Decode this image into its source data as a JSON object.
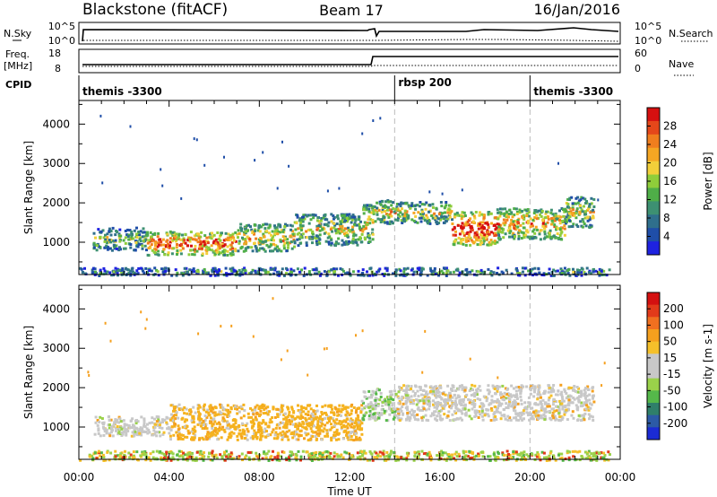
{
  "header": {
    "station": "Blackstone (fitACF)",
    "beam": "Beam 17",
    "date": "16/Jan/2016"
  },
  "summary": {
    "nsky_label": "N.Sky",
    "nsky_ticks": [
      "10^5",
      "10^0"
    ],
    "nsearch_label": "N.Search",
    "nsearch_ticks": [
      "10^5",
      "10^0"
    ],
    "freq_label_1": "Freq.",
    "freq_label_2": "[MHz]",
    "freq_ticks": [
      "18",
      "8"
    ],
    "nave_label": "Nave",
    "nave_ticks": [
      "60",
      "0"
    ],
    "cpid_label": "CPID",
    "cpid_segments": [
      {
        "label": "themis -3300",
        "start_h": 0,
        "end_h": 14
      },
      {
        "label": "rbsp 200",
        "start_h": 14,
        "end_h": 20
      },
      {
        "label": "themis -3300",
        "start_h": 20,
        "end_h": 24
      }
    ]
  },
  "chart_data": [
    {
      "type": "heatmap",
      "panel": "power",
      "ylabel": "Slant Range [km]",
      "colorbar_label": "Power [dB]",
      "colorbar_ticks": [
        "28",
        "24",
        "20",
        "16",
        "12",
        "8",
        "4"
      ],
      "colorbar_colors": [
        "#1e22e0",
        "#1f4ea8",
        "#2f6f8c",
        "#3d9072",
        "#4fae48",
        "#8fcd3a",
        "#f2cf3a",
        "#f5a623",
        "#f07e1e",
        "#e5471a",
        "#d61010"
      ],
      "ylim": [
        180,
        4600
      ],
      "yticks": [
        1000,
        2000,
        3000,
        4000
      ],
      "x_range_hours": [
        0,
        24
      ],
      "scatter_bands": [
        {
          "t0": 0.6,
          "t1": 3.0,
          "r0": 820,
          "r1": 1400,
          "level": 0.35
        },
        {
          "t0": 3.0,
          "t1": 7.0,
          "r0": 700,
          "r1": 1300,
          "level": 0.75
        },
        {
          "t0": 7.0,
          "t1": 9.5,
          "r0": 800,
          "r1": 1500,
          "level": 0.55
        },
        {
          "t0": 9.5,
          "t1": 12.5,
          "r0": 950,
          "r1": 1750,
          "level": 0.45
        },
        {
          "t0": 12.5,
          "t1": 13.0,
          "r0": 1000,
          "r1": 2000,
          "level": 0.55
        },
        {
          "t0": 13.0,
          "t1": 14.0,
          "r0": 1500,
          "r1": 2100,
          "level": 0.5
        },
        {
          "t0": 14.0,
          "t1": 16.5,
          "r0": 1500,
          "r1": 2050,
          "level": 0.45
        },
        {
          "t0": 16.5,
          "t1": 18.5,
          "r0": 950,
          "r1": 1800,
          "level": 0.85
        },
        {
          "t0": 18.5,
          "t1": 21.5,
          "r0": 1100,
          "r1": 1900,
          "level": 0.6
        },
        {
          "t0": 21.5,
          "t1": 22.8,
          "r0": 1400,
          "r1": 2200,
          "level": 0.45
        },
        {
          "t0": 0.0,
          "t1": 23.5,
          "r0": 180,
          "r1": 380,
          "level": 0.25
        }
      ]
    },
    {
      "type": "heatmap",
      "panel": "velocity",
      "ylabel": "Slant Range [km]",
      "colorbar_label": "Velocity [m s-1]",
      "colorbar_ticks": [
        "200",
        "100",
        "50",
        "15",
        "-15",
        "-50",
        "-100",
        "-200"
      ],
      "colorbar_colors": [
        "#1b2bd4",
        "#2c5aa6",
        "#2f7f6a",
        "#55b84a",
        "#9ad24a",
        "#c8c8c8",
        "#c8c8c8",
        "#f5c02a",
        "#f5a01e",
        "#f07020",
        "#e23a1a",
        "#d41010"
      ],
      "ylim": [
        180,
        4600
      ],
      "yticks": [
        1000,
        2000,
        3000,
        4000
      ],
      "x_range_hours": [
        0,
        24
      ],
      "scatter_bands": [
        {
          "t0": 0.6,
          "t1": 4.0,
          "r0": 800,
          "r1": 1300,
          "kind": "grey"
        },
        {
          "t0": 4.0,
          "t1": 12.5,
          "r0": 700,
          "r1": 1600,
          "kind": "orange"
        },
        {
          "t0": 12.5,
          "t1": 14.0,
          "r0": 1200,
          "r1": 2000,
          "kind": "green"
        },
        {
          "t0": 14.0,
          "t1": 22.8,
          "r0": 1200,
          "r1": 2100,
          "kind": "grey"
        },
        {
          "t0": 0.0,
          "t1": 23.5,
          "r0": 180,
          "r1": 420,
          "kind": "mixed"
        }
      ]
    }
  ],
  "xaxis": {
    "ticks": [
      "00:00",
      "04:00",
      "08:00",
      "12:00",
      "16:00",
      "20:00",
      "00:00"
    ],
    "label": "Time UT"
  }
}
